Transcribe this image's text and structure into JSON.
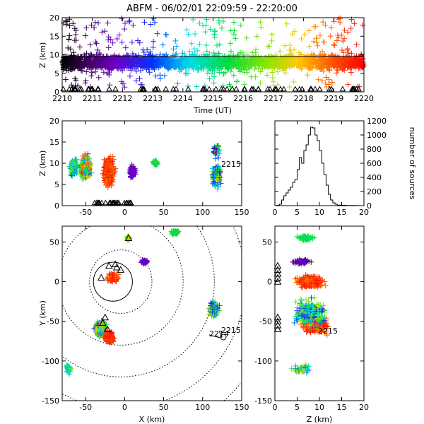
{
  "title": "ABFM - 06/02/01 22:09:59 - 22:20:00",
  "chart_data": [
    {
      "id": "time-height",
      "type": "scatter",
      "xlabel": "Time (UT)",
      "ylabel": "Z (km)",
      "x_ticks": [
        "2210",
        "2211",
        "2212",
        "2213",
        "2214",
        "2215",
        "2216",
        "2217",
        "2218",
        "2219",
        "2220"
      ],
      "y_ticks": [
        0,
        5,
        10,
        15,
        20
      ],
      "xlim": [
        0,
        10
      ],
      "ylim": [
        0,
        20
      ],
      "color_scale": "rainbow by time",
      "reference_line_z": 9.5,
      "station_triangles_at_z0": true
    },
    {
      "id": "x-z",
      "type": "scatter",
      "ylabel": "Z (km)",
      "x_ticks": [
        -50,
        0,
        50,
        100,
        150
      ],
      "y_ticks": [
        0,
        5,
        10,
        15,
        20
      ],
      "xlim": [
        -80,
        150
      ],
      "ylim": [
        0,
        20
      ],
      "annotation": "2215"
    },
    {
      "id": "histogram",
      "type": "line",
      "ylabel": "number of sources",
      "x_ticks": [
        0,
        5,
        10,
        15,
        20
      ],
      "y_ticks": [
        0,
        200,
        400,
        600,
        800,
        1000,
        1200
      ],
      "xlim": [
        0,
        20
      ],
      "ylim": [
        0,
        1200
      ],
      "x": [
        0.5,
        1.0,
        1.5,
        2.0,
        2.5,
        3.0,
        3.5,
        4.0,
        4.5,
        5.0,
        5.5,
        6.0,
        6.5,
        7.0,
        7.5,
        8.0,
        8.5,
        9.0,
        9.5,
        10.0,
        10.5,
        11.0,
        11.5,
        12.0,
        12.5,
        13.0,
        13.5,
        14.0,
        15.0,
        16.0,
        17.0,
        18.0,
        19.0,
        20.0
      ],
      "y": [
        0,
        5,
        20,
        80,
        140,
        180,
        220,
        260,
        330,
        370,
        510,
        680,
        600,
        780,
        860,
        1000,
        1110,
        1100,
        1000,
        920,
        780,
        600,
        440,
        290,
        160,
        80,
        40,
        20,
        8,
        5,
        3,
        2,
        1,
        0
      ]
    },
    {
      "id": "plan-view",
      "type": "scatter",
      "xlabel": "X (km)",
      "ylabel": "Y (km)",
      "x_ticks": [
        -50,
        0,
        50,
        100,
        150
      ],
      "y_ticks": [
        -150,
        -100,
        -50,
        0,
        50
      ],
      "xlim": [
        -80,
        150
      ],
      "ylim": [
        -150,
        70
      ],
      "range_rings_km": [
        40,
        80,
        120,
        160,
        200
      ],
      "annotations": [
        "2215",
        "2214"
      ]
    },
    {
      "id": "z-y",
      "type": "scatter",
      "xlabel": "Z (km)",
      "x_ticks": [
        0,
        5,
        10,
        15,
        20
      ],
      "y_ticks": [
        -150,
        -100,
        -50,
        0,
        50
      ],
      "xlim": [
        0,
        20
      ],
      "ylim": [
        -150,
        70
      ],
      "annotation": "2215"
    }
  ]
}
